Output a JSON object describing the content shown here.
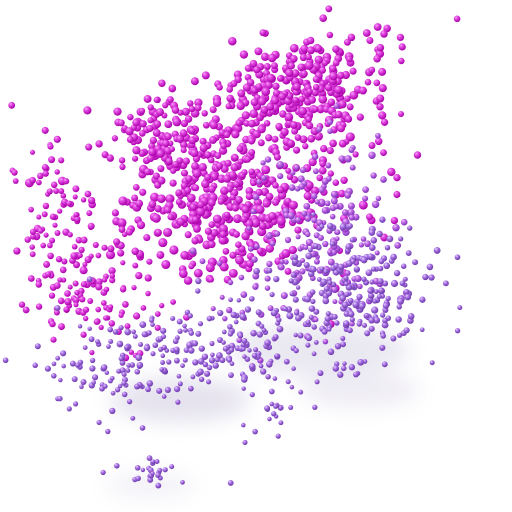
{
  "image": {
    "description_tags": [
      "3d-render",
      "point-cloud",
      "spheres",
      "gradient"
    ],
    "background_color": "#ffffff",
    "point_cloud": {
      "colors": {
        "magenta": "#d116d1",
        "magenta_highlight": "#f7a6f7",
        "lavender": "#a46be0",
        "lavender_highlight": "#e4d1ff",
        "shadow": "#7a6aa6"
      },
      "point_count_estimate": 1400
    }
  }
}
